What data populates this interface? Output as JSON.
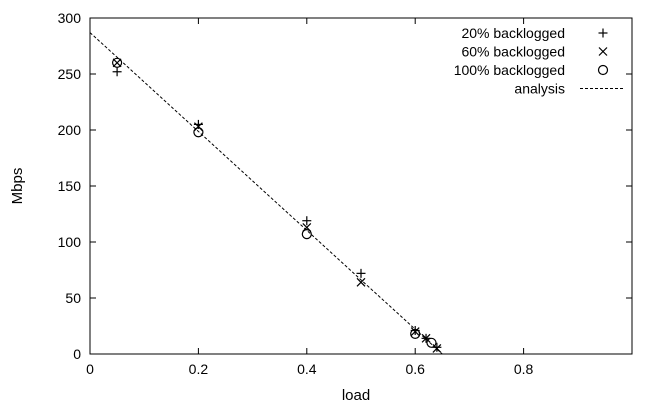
{
  "chart_data": {
    "type": "scatter",
    "title": "",
    "xlabel": "load",
    "ylabel": "Mbps",
    "xlim": [
      0,
      1
    ],
    "ylim": [
      0,
      300
    ],
    "x_ticks": [
      {
        "value": 0,
        "label": "0"
      },
      {
        "value": 0.2,
        "label": "0.2"
      },
      {
        "value": 0.4,
        "label": "0.4"
      },
      {
        "value": 0.6,
        "label": "0.6"
      },
      {
        "value": 0.8,
        "label": "0.8"
      }
    ],
    "y_ticks": [
      {
        "value": 0,
        "label": "0"
      },
      {
        "value": 50,
        "label": "50"
      },
      {
        "value": 100,
        "label": "100"
      },
      {
        "value": 150,
        "label": "150"
      },
      {
        "value": 200,
        "label": "200"
      },
      {
        "value": 250,
        "label": "250"
      },
      {
        "value": 300,
        "label": "300"
      }
    ],
    "grid": false,
    "legend_position": "top-right",
    "series": [
      {
        "name": "20% backlogged",
        "marker": "plus",
        "points": [
          {
            "x": 0.05,
            "y": 252
          },
          {
            "x": 0.2,
            "y": 205
          },
          {
            "x": 0.4,
            "y": 119
          },
          {
            "x": 0.5,
            "y": 72
          },
          {
            "x": 0.6,
            "y": 21
          },
          {
            "x": 0.62,
            "y": 14
          },
          {
            "x": 0.64,
            "y": 6
          }
        ]
      },
      {
        "name": "60% backlogged",
        "marker": "cross",
        "points": [
          {
            "x": 0.05,
            "y": 260
          },
          {
            "x": 0.2,
            "y": 203
          },
          {
            "x": 0.4,
            "y": 113
          },
          {
            "x": 0.5,
            "y": 64
          },
          {
            "x": 0.6,
            "y": 20
          },
          {
            "x": 0.62,
            "y": 14
          },
          {
            "x": 0.64,
            "y": 5
          }
        ]
      },
      {
        "name": "100% backlogged",
        "marker": "circle",
        "points": [
          {
            "x": 0.05,
            "y": 260
          },
          {
            "x": 0.2,
            "y": 198
          },
          {
            "x": 0.4,
            "y": 107
          },
          {
            "x": 0.6,
            "y": 18
          },
          {
            "x": 0.63,
            "y": 10
          }
        ]
      },
      {
        "name": "analysis",
        "style": "dashed-line",
        "points": [
          {
            "x": 0,
            "y": 287
          },
          {
            "x": 0.65,
            "y": 0
          }
        ]
      }
    ]
  }
}
